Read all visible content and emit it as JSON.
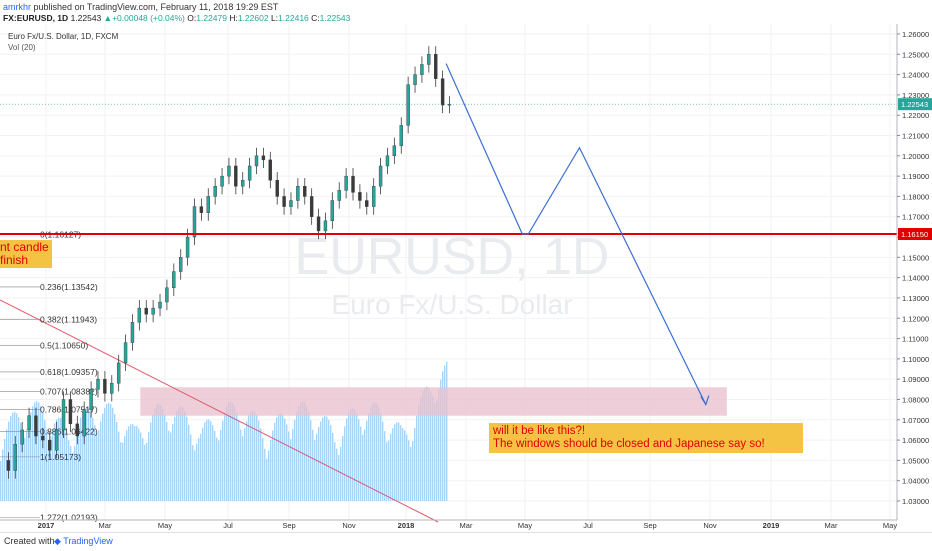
{
  "header": {
    "user": "amrkhr",
    "published": "published on TradingView.com, February 11, 2018 19:29 EST",
    "symbol": "FX:EURUSD, 1D",
    "last": "1.22543",
    "change": "+0.00048 (+0.04%)",
    "open_label": "O:",
    "open": "1.22479",
    "high_label": "H:",
    "high": "1.22602",
    "low_label": "L:",
    "low": "1.22416",
    "close_label": "C:",
    "close": "1.22543"
  },
  "legend": {
    "title": "Euro Fx/U.S. Dollar, 1D, FXCM",
    "indicator": "Vol (20)"
  },
  "watermark": {
    "symbol": "EURUSD, 1D",
    "name": "Euro Fx/U.S. Dollar"
  },
  "annotations": {
    "left_note": "nt candle\nfinish",
    "right_note": "will it be like this?!\nThe windows should be closed and Japanese say so!"
  },
  "colors": {
    "up": "#26a69a",
    "down": "#ef5350",
    "candle": "#3a3a3a",
    "volume": "#90caf9",
    "support_line": "#e00000",
    "projection": "#3d6fd1",
    "zone": "#e8bfcc",
    "trendline": "#e05a6a",
    "note_bg": "#f5c344"
  },
  "chart_data": {
    "type": "candlestick",
    "y_range": [
      1.02,
      1.265
    ],
    "y_ticks": [
      "1.26000",
      "1.25000",
      "1.24000",
      "1.23000",
      "1.22000",
      "1.21000",
      "1.20000",
      "1.19000",
      "1.18000",
      "1.17000",
      "1.16000",
      "1.15000",
      "1.14000",
      "1.13000",
      "1.12000",
      "1.11000",
      "1.10000",
      "1.09000",
      "1.08000",
      "1.07000",
      "1.06000",
      "1.05000",
      "1.04000",
      "1.03000"
    ],
    "x_ticks": [
      "2017",
      "Mar",
      "May",
      "Jul",
      "Sep",
      "Nov",
      "2018",
      "Mar",
      "May",
      "Jul",
      "Sep",
      "Nov",
      "2019",
      "Mar",
      "May"
    ],
    "last_price_label": "1.22543",
    "support_label": "1.16150",
    "support_price": 1.1615,
    "fib_levels": [
      {
        "label": "0(1.16127)",
        "price": 1.16127
      },
      {
        "label": "0.236(1.13542)",
        "price": 1.13542
      },
      {
        "label": "0.382(1.11943)",
        "price": 1.11943
      },
      {
        "label": "0.5(1.10650)",
        "price": 1.1065
      },
      {
        "label": "0.618(1.09357)",
        "price": 1.09357
      },
      {
        "label": "0.707(1.08382)",
        "price": 1.08382
      },
      {
        "label": "0.786(1.07517)",
        "price": 1.07517
      },
      {
        "label": "0.886(1.06422)",
        "price": 1.06422
      },
      {
        "label": "1(1.05173)",
        "price": 1.05173
      },
      {
        "label": "1.272(1.02193)",
        "price": 1.02193
      }
    ],
    "zone": {
      "top": 1.086,
      "bottom": 1.072
    },
    "price_path": [
      [
        0,
        1.05
      ],
      [
        4,
        1.045
      ],
      [
        8,
        1.058
      ],
      [
        12,
        1.065
      ],
      [
        16,
        1.072
      ],
      [
        20,
        1.062
      ],
      [
        24,
        1.06
      ],
      [
        28,
        1.055
      ],
      [
        32,
        1.065
      ],
      [
        36,
        1.08
      ],
      [
        40,
        1.068
      ],
      [
        44,
        1.062
      ],
      [
        48,
        1.075
      ],
      [
        52,
        1.085
      ],
      [
        56,
        1.09
      ],
      [
        60,
        1.083
      ],
      [
        64,
        1.088
      ],
      [
        68,
        1.098
      ],
      [
        72,
        1.108
      ],
      [
        76,
        1.118
      ],
      [
        80,
        1.125
      ],
      [
        84,
        1.122
      ],
      [
        88,
        1.125
      ],
      [
        92,
        1.128
      ],
      [
        96,
        1.135
      ],
      [
        100,
        1.143
      ],
      [
        104,
        1.15
      ],
      [
        108,
        1.16
      ],
      [
        112,
        1.175
      ],
      [
        116,
        1.172
      ],
      [
        120,
        1.18
      ],
      [
        124,
        1.185
      ],
      [
        128,
        1.19
      ],
      [
        132,
        1.195
      ],
      [
        136,
        1.185
      ],
      [
        140,
        1.188
      ],
      [
        144,
        1.195
      ],
      [
        148,
        1.2
      ],
      [
        152,
        1.198
      ],
      [
        156,
        1.188
      ],
      [
        160,
        1.18
      ],
      [
        164,
        1.175
      ],
      [
        168,
        1.178
      ],
      [
        172,
        1.185
      ],
      [
        176,
        1.18
      ],
      [
        180,
        1.17
      ],
      [
        184,
        1.163
      ],
      [
        188,
        1.168
      ],
      [
        192,
        1.178
      ],
      [
        196,
        1.183
      ],
      [
        200,
        1.19
      ],
      [
        204,
        1.182
      ],
      [
        208,
        1.178
      ],
      [
        212,
        1.175
      ],
      [
        216,
        1.185
      ],
      [
        220,
        1.195
      ],
      [
        224,
        1.2
      ],
      [
        228,
        1.205
      ],
      [
        232,
        1.215
      ],
      [
        236,
        1.235
      ],
      [
        240,
        1.24
      ],
      [
        244,
        1.245
      ],
      [
        248,
        1.25
      ],
      [
        252,
        1.238
      ],
      [
        256,
        1.225
      ],
      [
        260,
        1.22543
      ]
    ],
    "projection": [
      {
        "x": "2018-02-11",
        "y": 1.2454
      },
      {
        "x": "2018-04-28",
        "y": 1.1615
      },
      {
        "x": "2018-05-04",
        "y": 1.1615
      },
      {
        "x": "2018-06-24",
        "y": 1.204
      },
      {
        "x": "2018-10-28",
        "y": 1.0775
      }
    ]
  }
}
